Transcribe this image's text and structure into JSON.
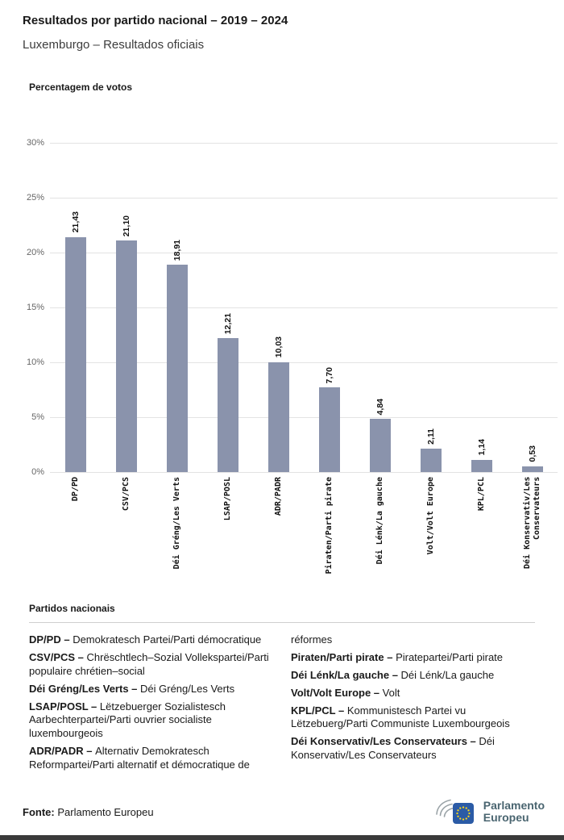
{
  "header": {
    "title": "Resultados por partido nacional – 2019 – 2024",
    "subtitle": "Luxemburgo – Resultados oficiais"
  },
  "chart_data": {
    "type": "bar",
    "title": "Percentagem de votos",
    "xlabel": "",
    "ylabel": "",
    "ylim": [
      0,
      30
    ],
    "ytick_step": 5,
    "ytick_suffix": "%",
    "yticks": [
      "0%",
      "5%",
      "10%",
      "15%",
      "20%",
      "25%",
      "30%"
    ],
    "grid": true,
    "legend_position": "none",
    "bar_color": "#8a93ac",
    "categories": [
      "DP/PD",
      "CSV/PCS",
      "Déi Gréng/Les Verts",
      "LSAP/POSL",
      "ADR/PADR",
      "Piraten/Parti pirate",
      "Déi Lénk/La gauche",
      "Volt/Volt Europe",
      "KPL/PCL",
      "Déi Konservativ/Les Conservateurs"
    ],
    "values": [
      21.43,
      21.1,
      18.91,
      12.21,
      10.03,
      7.7,
      4.84,
      2.11,
      1.14,
      0.53
    ],
    "value_labels": [
      "21,43",
      "21,10",
      "18,91",
      "12,21",
      "10,03",
      "7,70",
      "4,84",
      "2,11",
      "1,14",
      "0,53"
    ]
  },
  "legend": {
    "heading": "Partidos nacionais",
    "columns": [
      [
        {
          "term": "DP/PD –",
          "desc": "Demokratesch Partei/Parti démocratique"
        },
        {
          "term": "CSV/PCS –",
          "desc": "Chrëschtlech–Sozial Vollekspartei/Parti populaire chrétien–social"
        },
        {
          "term": "Déi Gréng/Les Verts –",
          "desc": "Déi Gréng/Les Verts"
        },
        {
          "term": "LSAP/POSL –",
          "desc": "Lëtzebuerger Sozialistesch Aarbechterpartei/Parti ouvrier socialiste luxembourgeois"
        },
        {
          "term": "ADR/PADR –",
          "desc": "Alternativ Demokratesch Reformpartei/Parti alternatif et démocratique de"
        }
      ],
      [
        {
          "term": "",
          "desc": "réformes"
        },
        {
          "term": "Piraten/Parti pirate –",
          "desc": "Piratepartei/Parti pirate"
        },
        {
          "term": "Déi Lénk/La gauche –",
          "desc": "Déi Lénk/La gauche"
        },
        {
          "term": "Volt/Volt Europe –",
          "desc": "Volt"
        },
        {
          "term": "KPL/PCL –",
          "desc": "Kommunistesch Partei vu Lëtzebuerg/Parti Communiste Luxembourgeois"
        },
        {
          "term": "Déi Konservativ/Les Conservateurs –",
          "desc": "Déi Konservativ/Les Conservateurs"
        }
      ]
    ]
  },
  "footer": {
    "source_label": "Fonte:",
    "source_text": "Parlamento Europeu",
    "logo": {
      "line1": "Parlamento",
      "line2": "Europeu"
    }
  },
  "brand": {
    "flag_blue": "#2b5ba6",
    "star_yellow": "#ffd617",
    "logo_text_color": "#4a6570",
    "bar_color": "#8a93ac"
  }
}
